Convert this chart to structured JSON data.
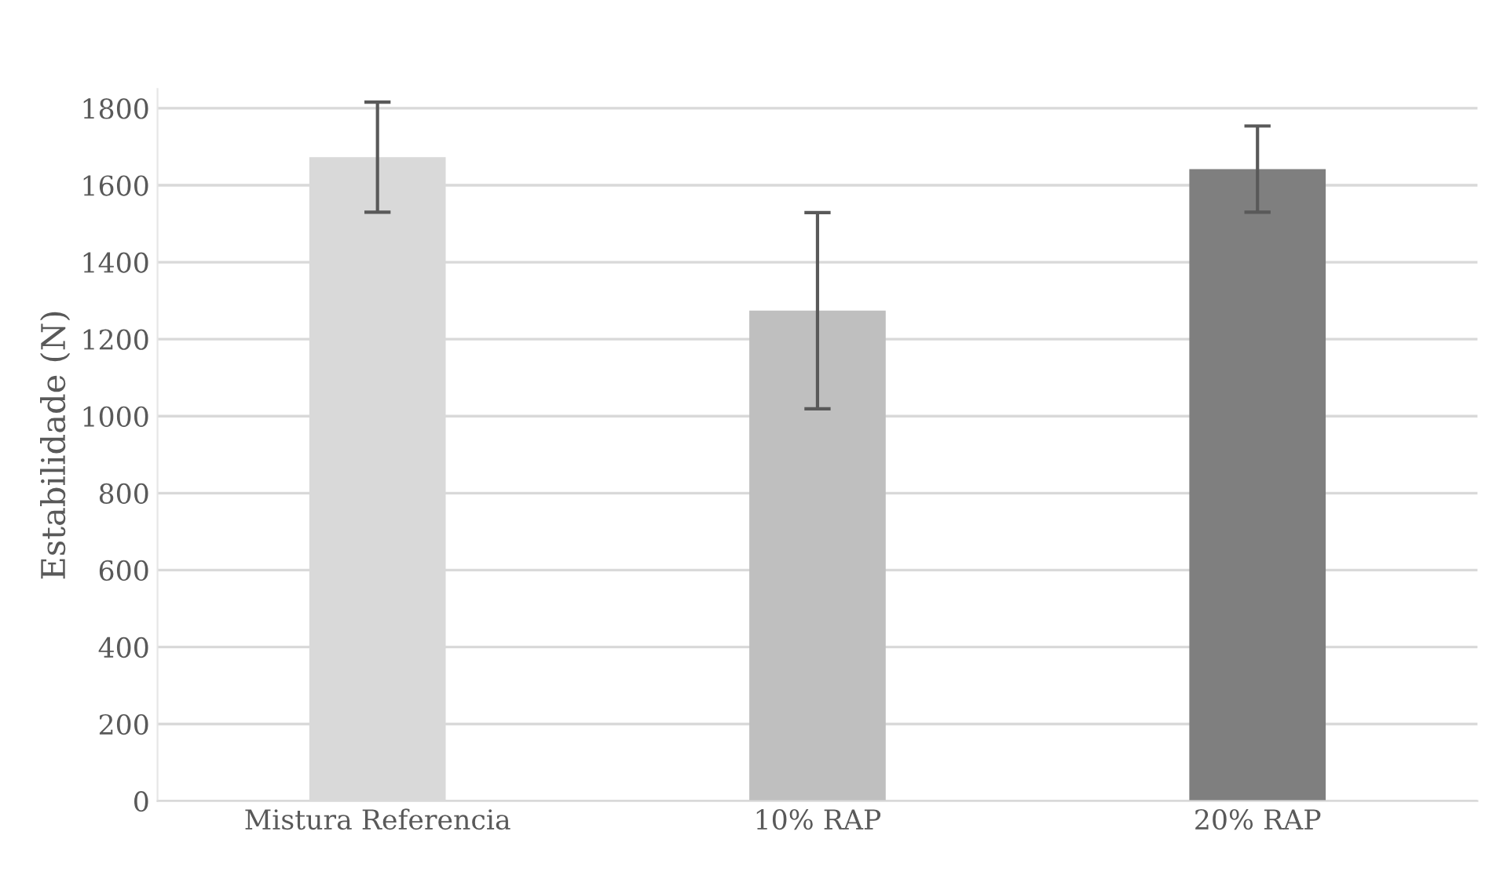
{
  "chart_data": {
    "type": "bar",
    "ylabel": "Estabilidade (N)",
    "categories": [
      "Mistura Referencia",
      "10% RAP",
      "20% RAP"
    ],
    "values": [
      1673,
      1274,
      1642
    ],
    "errors": [
      143,
      255,
      112
    ],
    "colors": [
      "#d9d9d9",
      "#bfbfbf",
      "#7f7f7f"
    ],
    "ylim": [
      0,
      1850
    ],
    "yticks": [
      0,
      200,
      400,
      600,
      800,
      1000,
      1200,
      1400,
      1600,
      1800
    ],
    "grid": "y"
  }
}
